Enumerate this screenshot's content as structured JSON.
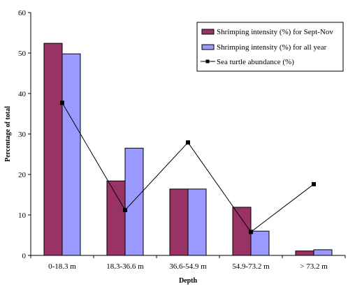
{
  "chart_data": {
    "type": "bar",
    "title": "",
    "xlabel": "Depth",
    "ylabel": "Percentage of total",
    "ylim": [
      0,
      60
    ],
    "yticks": [
      0,
      10,
      20,
      30,
      40,
      50,
      60
    ],
    "categories": [
      "0-18.3 m",
      "18.3-36.6 m",
      "36.6-54.9 m",
      "54.9-73.2 m",
      "> 73.2 m"
    ],
    "series": [
      {
        "name": "Shrimping intensity (%) for Sept-Nov",
        "kind": "bar",
        "color": "#993366",
        "values": [
          52.4,
          18.4,
          16.4,
          11.9,
          1.1
        ]
      },
      {
        "name": "Shrimping intensity (%) for all year",
        "kind": "bar",
        "color": "#9999ff",
        "values": [
          49.8,
          26.5,
          16.4,
          6.0,
          1.4
        ]
      },
      {
        "name": "Sea turtle abundance (%)",
        "kind": "line",
        "color": "#000000",
        "marker": "square",
        "values": [
          37.7,
          11.2,
          27.9,
          5.8,
          17.6
        ]
      }
    ],
    "grid": false,
    "legend_position": "top-right"
  }
}
